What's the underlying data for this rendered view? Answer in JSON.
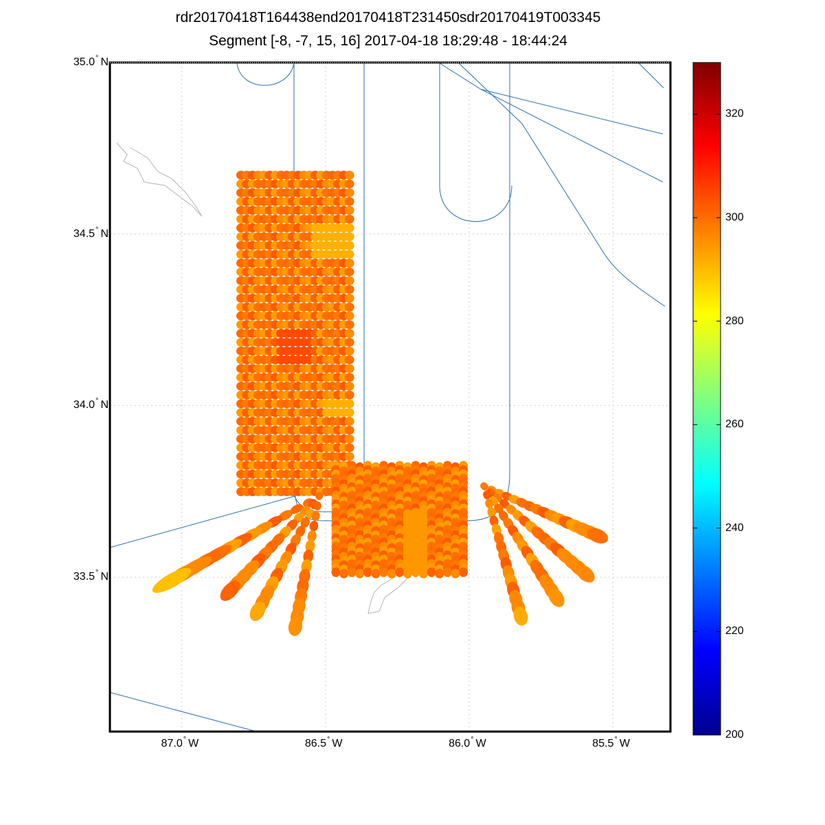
{
  "title": {
    "line1": "rdr20170418T164438end20170418T231450sdr20170419T003345",
    "line2": "Segment [-8, -7, 15, 16] 2017-04-18 18:29:48 - 18:44:24"
  },
  "map": {
    "lon_range": [
      -87.25,
      -85.3
    ],
    "lat_range": [
      33.05,
      35.0
    ],
    "lat_ticks": [
      {
        "value": 35.0,
        "num": "35.0",
        "hemi": "N"
      },
      {
        "value": 34.5,
        "num": "34.5",
        "hemi": "N"
      },
      {
        "value": 34.0,
        "num": "34.0",
        "hemi": "N"
      },
      {
        "value": 33.5,
        "num": "33.5",
        "hemi": "N"
      }
    ],
    "lon_ticks": [
      {
        "value": -87.0,
        "num": "87.0",
        "hemi": "W"
      },
      {
        "value": -86.5,
        "num": "86.5",
        "hemi": "W"
      },
      {
        "value": -86.0,
        "num": "86.0",
        "hemi": "W"
      },
      {
        "value": -85.5,
        "num": "85.5",
        "hemi": "W"
      }
    ],
    "colors": {
      "track": "#2a6fb0",
      "coast": "#b4b4b4",
      "grid": "#cfcfcf"
    }
  },
  "colorbar": {
    "min": 200,
    "max": 330,
    "ticks": [
      "200",
      "220",
      "240",
      "260",
      "280",
      "300",
      "320"
    ],
    "colormap": "jet"
  }
}
